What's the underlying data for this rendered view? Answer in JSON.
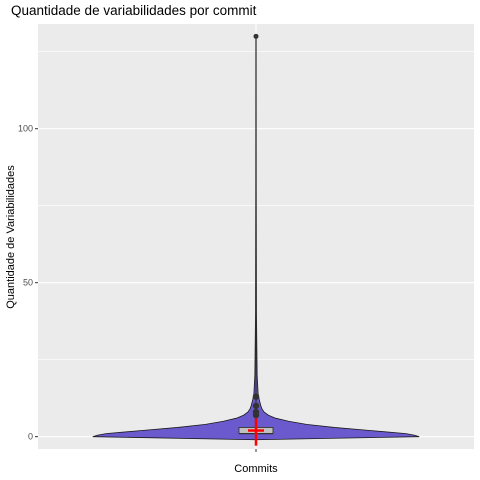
{
  "chart_data": {
    "type": "violin",
    "title": "Quantidade de variabilidades por commit",
    "xlabel": "Commits",
    "ylabel": "Quantidade de Variabilidades",
    "categories": [
      ""
    ],
    "ylim": [
      -4,
      134
    ],
    "yticks": [
      0,
      50,
      100
    ],
    "grid": true,
    "legend": "none",
    "summary": {
      "min": 0,
      "q1": 1,
      "median": 1,
      "q3": 3,
      "whisker_high": 6,
      "mean": 2,
      "max": 130
    },
    "outliers": [
      7,
      8,
      10,
      13,
      130
    ],
    "violin_profile": {
      "y": [
        -1,
        0,
        0.5,
        1,
        2,
        3,
        4,
        5,
        6,
        7,
        8,
        9,
        10,
        12,
        14,
        20,
        40,
        80,
        130
      ],
      "half_width": [
        0.0,
        1.0,
        0.97,
        0.92,
        0.7,
        0.48,
        0.31,
        0.2,
        0.12,
        0.075,
        0.05,
        0.037,
        0.03,
        0.02,
        0.013,
        0.007,
        0.003,
        0.0015,
        0.0008
      ]
    },
    "colors": {
      "panel": "#EBEBEB",
      "grid": "#FFFFFF",
      "violin_fill": "#6A5ACD",
      "violin_stroke": "#1a1a1a",
      "box_fill": "#C0C0C0",
      "mean_marker": "#FF0000",
      "points": "#333333"
    }
  }
}
